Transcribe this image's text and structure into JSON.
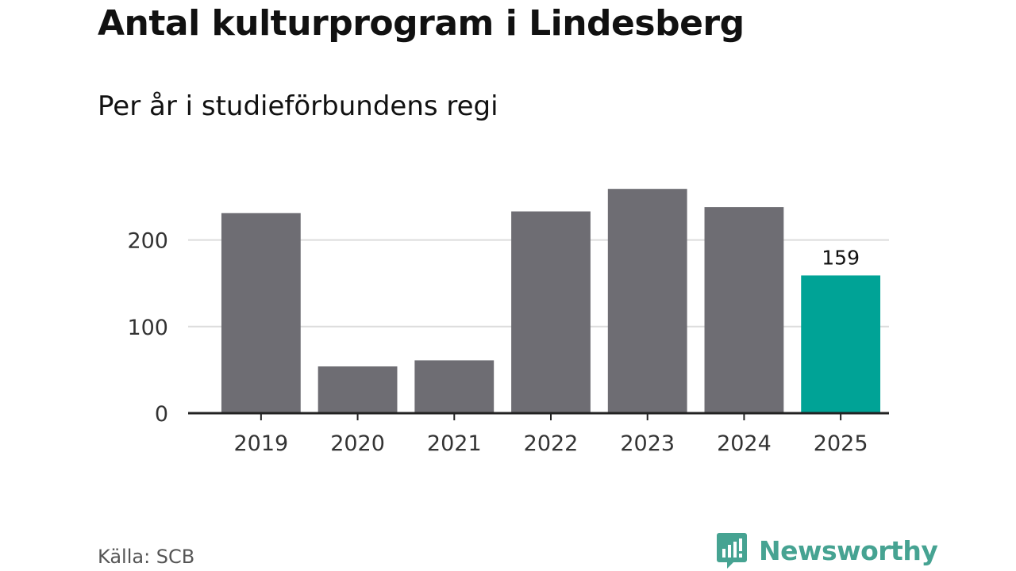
{
  "title": "Antal kulturprogram i Lindesberg",
  "subtitle": "Per år i studieförbundens regi",
  "source": "Källa: SCB",
  "brand": {
    "name": "Newsworthy",
    "icon": "newsworthy-logo-icon",
    "color": "#46a392"
  },
  "colors": {
    "bar": "#6e6d73",
    "highlight": "#00a396",
    "grid": "#dcdcdc",
    "axis": "#222222"
  },
  "chart_data": {
    "type": "bar",
    "categories": [
      "2019",
      "2020",
      "2021",
      "2022",
      "2023",
      "2024",
      "2025"
    ],
    "values": [
      231,
      54,
      61,
      233,
      259,
      238,
      159
    ],
    "highlight_index": 6,
    "data_labels": [
      {
        "index": 6,
        "text": "159"
      }
    ],
    "yticks": [
      0,
      100,
      200
    ],
    "ylim": [
      0,
      265
    ],
    "grid": true,
    "legend": "none"
  }
}
